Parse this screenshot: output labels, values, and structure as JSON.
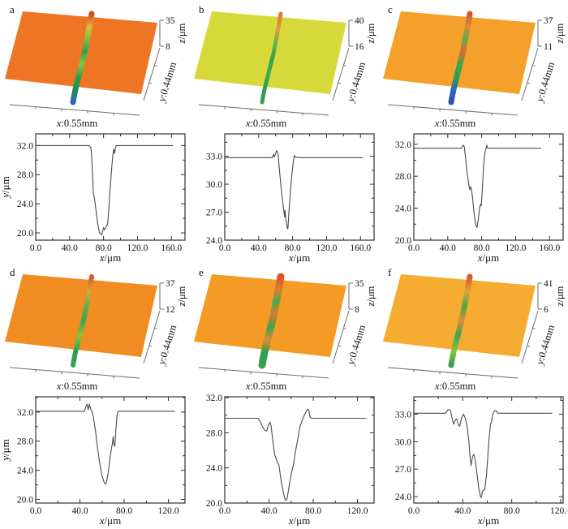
{
  "figure": {
    "background": "#ffffff",
    "curve_color": "#4a4a4a",
    "frame_color": "#2f2f2f",
    "axis_line_color": "#6b6b6b"
  },
  "chart_data": [
    {
      "panel": "a",
      "surface": {
        "type": "surface",
        "surface_color": "#ee7524",
        "groove_colors": [
          "#cc4a20",
          "#e3b93a",
          "#7fbf3f",
          "#2fa24d",
          "#8cc43e",
          "#2f9f4e",
          "#1d8c55",
          "#2d66c0"
        ],
        "groove_width": 7,
        "z_ticks": [
          "35",
          "8"
        ],
        "z_axis_label": "z/μm",
        "y_axis_label": "y:0.44mm",
        "x_axis_label": "x:0.55mm"
      },
      "profile": {
        "type": "line",
        "xlabel": "x/μm",
        "ylabel": "y/μm",
        "x_ticks": [
          0,
          40,
          80,
          120,
          160
        ],
        "y_ticks": [
          20,
          24,
          28,
          32
        ],
        "x_minor_step": 20,
        "y_minor_step": 2,
        "xlim": [
          0,
          176
        ],
        "ylim": [
          19,
          33.6
        ],
        "points": [
          [
            0,
            32
          ],
          [
            63,
            32
          ],
          [
            65,
            31.7
          ],
          [
            66,
            30.5
          ],
          [
            68,
            25.3
          ],
          [
            69,
            25.0
          ],
          [
            71,
            23.2
          ],
          [
            73,
            21.3
          ],
          [
            75,
            20.1
          ],
          [
            77,
            19.8
          ],
          [
            78,
            19.75
          ],
          [
            79,
            20.3
          ],
          [
            80,
            20.7
          ],
          [
            81,
            20.4
          ],
          [
            82,
            20.6
          ],
          [
            84,
            21.0
          ],
          [
            85,
            21.4
          ],
          [
            86,
            23.0
          ],
          [
            88,
            26.5
          ],
          [
            90,
            29.5
          ],
          [
            91,
            30.7
          ],
          [
            92,
            31.5
          ],
          [
            93,
            30.9
          ],
          [
            94,
            31.7
          ],
          [
            95,
            32.0
          ],
          [
            100,
            32
          ],
          [
            162,
            32
          ]
        ]
      }
    },
    {
      "panel": "b",
      "surface": {
        "type": "surface",
        "surface_color": "#d7d93b",
        "groove_colors": [
          "#e0752d",
          "#e8993c",
          "#66b448",
          "#2fa24d",
          "#45ab4c",
          "#2f9f4e",
          "#35a04f"
        ],
        "groove_width": 5,
        "z_ticks": [
          "40",
          "16"
        ],
        "z_axis_label": "z/μm",
        "y_axis_label": "y:0.44mm",
        "x_axis_label": "x:0.55mm"
      },
      "profile": {
        "type": "line",
        "xlabel": "x/μm",
        "ylabel": "",
        "x_ticks": [
          0,
          40,
          80,
          120,
          160
        ],
        "y_ticks": [
          24,
          27,
          30,
          33
        ],
        "x_minor_step": 20,
        "y_minor_step": 1.5,
        "xlim": [
          0,
          176
        ],
        "ylim": [
          24,
          35.4
        ],
        "points": [
          [
            0,
            32.85
          ],
          [
            56,
            32.85
          ],
          [
            57.5,
            33.2
          ],
          [
            58.5,
            32.9
          ],
          [
            60,
            33.3
          ],
          [
            61,
            33.6
          ],
          [
            62,
            33.5
          ],
          [
            63,
            33.1
          ],
          [
            64,
            32.0
          ],
          [
            66,
            30.0
          ],
          [
            68,
            28.3
          ],
          [
            69.5,
            27.2
          ],
          [
            70.5,
            26.5
          ],
          [
            71,
            27.2
          ],
          [
            72,
            26.2
          ],
          [
            73,
            25.7
          ],
          [
            74,
            25.2
          ],
          [
            74.5,
            25.3
          ],
          [
            75.5,
            26.8
          ],
          [
            77,
            28.8
          ],
          [
            79,
            31.0
          ],
          [
            80.5,
            32.2
          ],
          [
            82,
            33.1
          ],
          [
            83,
            32.9
          ],
          [
            90,
            32.85
          ],
          [
            163,
            32.85
          ]
        ]
      }
    },
    {
      "panel": "c",
      "surface": {
        "type": "surface",
        "surface_color": "#f4a02a",
        "groove_colors": [
          "#d9542a",
          "#e08a35",
          "#57b04a",
          "#d96c2f",
          "#3aa64e",
          "#2f9f4e",
          "#2d66c0",
          "#2a54b8"
        ],
        "groove_width": 7,
        "z_ticks": [
          "37",
          "11"
        ],
        "z_axis_label": "z/μm",
        "y_axis_label": "y:0.44mm",
        "x_axis_label": "x:0.55mm"
      },
      "profile": {
        "type": "line",
        "xlabel": "x/μm",
        "ylabel": "",
        "x_ticks": [
          0,
          40,
          80,
          120,
          160
        ],
        "y_ticks": [
          20,
          24,
          28,
          32
        ],
        "x_minor_step": 20,
        "y_minor_step": 2,
        "xlim": [
          0,
          176
        ],
        "ylim": [
          20,
          33.3
        ],
        "points": [
          [
            0,
            31.5
          ],
          [
            56,
            31.5
          ],
          [
            58,
            31.9
          ],
          [
            59.5,
            31.7
          ],
          [
            61,
            30.3
          ],
          [
            63,
            28.2
          ],
          [
            65,
            26.8
          ],
          [
            66,
            26.3
          ],
          [
            67,
            26.7
          ],
          [
            68,
            26.2
          ],
          [
            69,
            25.6
          ],
          [
            71,
            23.4
          ],
          [
            73,
            21.9
          ],
          [
            74.5,
            21.6
          ],
          [
            76,
            22.6
          ],
          [
            77.5,
            24.0
          ],
          [
            78.5,
            24.5
          ],
          [
            79.5,
            24.3
          ],
          [
            80.5,
            26.0
          ],
          [
            82,
            28.8
          ],
          [
            83.5,
            30.8
          ],
          [
            84.5,
            31.2
          ],
          [
            86,
            31.9
          ],
          [
            87,
            31.5
          ],
          [
            90,
            31.5
          ],
          [
            150,
            31.5
          ]
        ]
      }
    },
    {
      "panel": "d",
      "surface": {
        "type": "surface",
        "surface_color": "#f08c22",
        "groove_colors": [
          "#d9542a",
          "#e0a53a",
          "#5db24a",
          "#3aa64e",
          "#8cc43e",
          "#2f9f4e",
          "#35a04f"
        ],
        "groove_width": 6,
        "z_ticks": [
          "37",
          "12"
        ],
        "z_axis_label": "z/μm",
        "y_axis_label": "y:0.44mm",
        "x_axis_label": "x:0.55mm"
      },
      "profile": {
        "type": "line",
        "xlabel": "x/μm",
        "ylabel": "y/μm",
        "x_ticks": [
          0,
          40,
          80,
          120
        ],
        "y_ticks": [
          20,
          24,
          28,
          32
        ],
        "x_minor_step": 20,
        "y_minor_step": 2,
        "xlim": [
          0,
          135
        ],
        "ylim": [
          19.5,
          34.1
        ],
        "points": [
          [
            0,
            32.1
          ],
          [
            44,
            32.1
          ],
          [
            45.5,
            32.8
          ],
          [
            46.5,
            33.1
          ],
          [
            47.5,
            32.3
          ],
          [
            48.5,
            33.1
          ],
          [
            49.5,
            32.5
          ],
          [
            51,
            32.0
          ],
          [
            52,
            31.4
          ],
          [
            54,
            29.5
          ],
          [
            56,
            27.0
          ],
          [
            58,
            24.8
          ],
          [
            60,
            23.2
          ],
          [
            62,
            22.3
          ],
          [
            63,
            22.1
          ],
          [
            64,
            22.3
          ],
          [
            65.5,
            23.6
          ],
          [
            67,
            25.5
          ],
          [
            68.5,
            27.0
          ],
          [
            69.5,
            27.8
          ],
          [
            70,
            28.6
          ],
          [
            70.8,
            27.5
          ],
          [
            71.5,
            27.3
          ],
          [
            72.5,
            29.5
          ],
          [
            73.5,
            31.5
          ],
          [
            74.5,
            32.1
          ],
          [
            80,
            32.1
          ],
          [
            126,
            32.1
          ]
        ]
      }
    },
    {
      "panel": "e",
      "surface": {
        "type": "surface",
        "surface_color": "#f49b25",
        "groove_colors": [
          "#d9542a",
          "#e07a30",
          "#4aa94c",
          "#d97c32",
          "#3aa64e",
          "#e08a35",
          "#2f9f4e",
          "#35a04f"
        ],
        "groove_width": 9,
        "z_ticks": [
          "35",
          "8"
        ],
        "z_axis_label": "z/μm",
        "y_axis_label": "y:0.44mm",
        "x_axis_label": "x:0.55mm"
      },
      "profile": {
        "type": "line",
        "xlabel": "x/μm",
        "ylabel": "",
        "x_ticks": [
          0,
          40,
          80,
          120
        ],
        "y_ticks": [
          20,
          24,
          28,
          32
        ],
        "x_minor_step": 20,
        "y_minor_step": 2,
        "xlim": [
          0,
          135
        ],
        "ylim": [
          20,
          32.1
        ],
        "points": [
          [
            0,
            29.65
          ],
          [
            30,
            29.65
          ],
          [
            32,
            29.3
          ],
          [
            34,
            28.7
          ],
          [
            36,
            28.3
          ],
          [
            38,
            28.2
          ],
          [
            39.5,
            28.9
          ],
          [
            41,
            29.2
          ],
          [
            42,
            28.7
          ],
          [
            43.5,
            27.0
          ],
          [
            45,
            25.6
          ],
          [
            47,
            24.8
          ],
          [
            49,
            24.3
          ],
          [
            51,
            22.5
          ],
          [
            53,
            21.2
          ],
          [
            54.5,
            20.4
          ],
          [
            55.5,
            20.3
          ],
          [
            56.5,
            20.6
          ],
          [
            58,
            21.8
          ],
          [
            60,
            23.3
          ],
          [
            62,
            24.3
          ],
          [
            64,
            25.9
          ],
          [
            66,
            27.3
          ],
          [
            68,
            28.7
          ],
          [
            70,
            29.4
          ],
          [
            72,
            30.0
          ],
          [
            74,
            30.5
          ],
          [
            75,
            30.7
          ],
          [
            76,
            30.6
          ],
          [
            77,
            29.8
          ],
          [
            78.5,
            29.65
          ],
          [
            128,
            29.65
          ]
        ]
      }
    },
    {
      "panel": "f",
      "surface": {
        "type": "surface",
        "surface_color": "#f6ac31",
        "groove_colors": [
          "#d9542a",
          "#e0a53a",
          "#4aa94c",
          "#e08a35",
          "#3aa64e",
          "#8cc43e",
          "#35a04f"
        ],
        "groove_width": 7,
        "z_ticks": [
          "41",
          "6"
        ],
        "z_axis_label": "z/μm",
        "y_axis_label": "y:0.44mm",
        "x_axis_label": "x:0.55mm"
      },
      "profile": {
        "type": "line",
        "xlabel": "x/μm",
        "ylabel": "",
        "x_ticks": [
          0,
          40,
          80,
          120
        ],
        "y_ticks": [
          24,
          27,
          30,
          33
        ],
        "x_minor_step": 20,
        "y_minor_step": 1.5,
        "xlim": [
          0,
          122
        ],
        "ylim": [
          23.3,
          34.9
        ],
        "points": [
          [
            0,
            33.1
          ],
          [
            26,
            33.1
          ],
          [
            28,
            33.5
          ],
          [
            30,
            33.4
          ],
          [
            31.5,
            32.4
          ],
          [
            32.5,
            31.9
          ],
          [
            34,
            32.4
          ],
          [
            35,
            32.5
          ],
          [
            36.5,
            31.8
          ],
          [
            37.5,
            31.7
          ],
          [
            39,
            32.6
          ],
          [
            40.5,
            33.0
          ],
          [
            42,
            32.6
          ],
          [
            43.5,
            31.7
          ],
          [
            45,
            30.0
          ],
          [
            46,
            28.2
          ],
          [
            46.8,
            27.4
          ],
          [
            48,
            28.4
          ],
          [
            49,
            28.6
          ],
          [
            50,
            28.1
          ],
          [
            51.5,
            26.6
          ],
          [
            53,
            25.0
          ],
          [
            54.5,
            24.0
          ],
          [
            55.2,
            23.9
          ],
          [
            56,
            24.6
          ],
          [
            58,
            24.8
          ],
          [
            59.5,
            26.5
          ],
          [
            61,
            29.5
          ],
          [
            62.5,
            31.8
          ],
          [
            63.5,
            32.2
          ],
          [
            64.5,
            33.0
          ],
          [
            66,
            33.4
          ],
          [
            67.5,
            33.35
          ],
          [
            68.5,
            33.1
          ],
          [
            75,
            33.1
          ],
          [
            113,
            33.1
          ]
        ]
      }
    }
  ]
}
